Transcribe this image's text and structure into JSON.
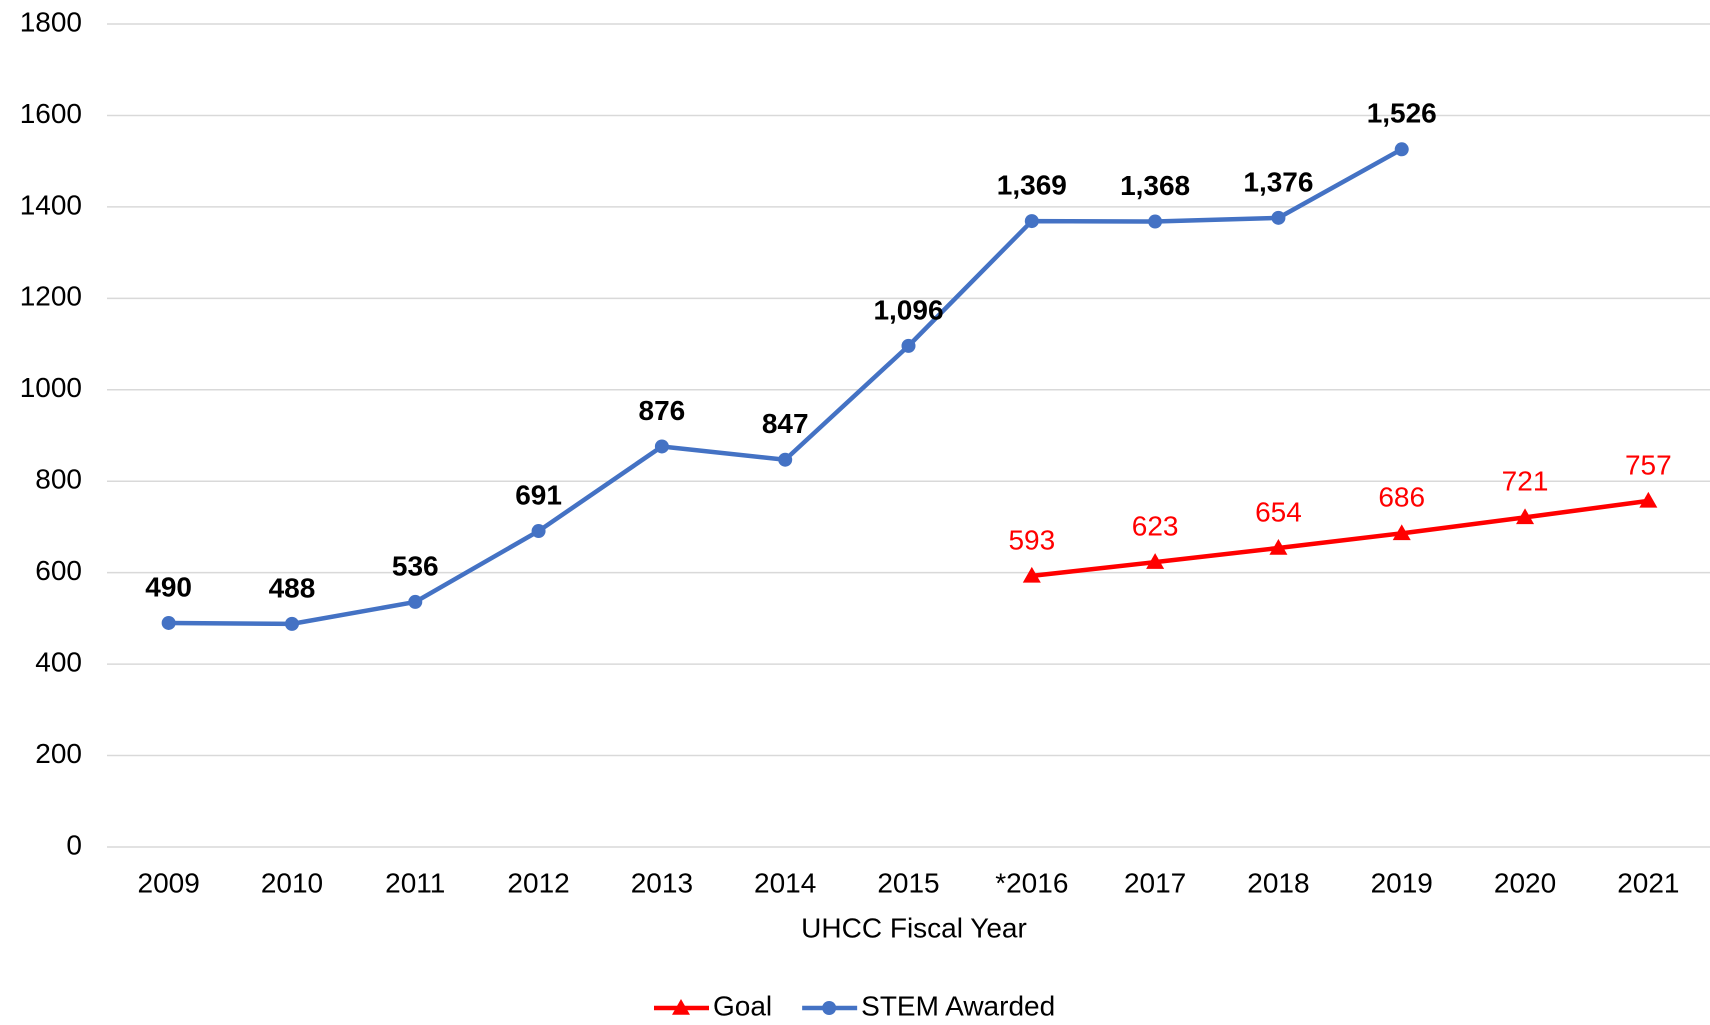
{
  "chart_data": {
    "type": "line",
    "xlabel": "UHCC Fiscal Year",
    "categories": [
      "2009",
      "2010",
      "2011",
      "2012",
      "2013",
      "2014",
      "2015",
      "*2016",
      "2017",
      "2018",
      "2019",
      "2020",
      "2021"
    ],
    "series": [
      {
        "name": "Goal",
        "color": "#ff0000",
        "marker": "triangle",
        "values": [
          null,
          null,
          null,
          null,
          null,
          null,
          null,
          593,
          623,
          654,
          686,
          721,
          757
        ]
      },
      {
        "name": "STEM Awarded",
        "color": "#4472c4",
        "marker": "circle",
        "values": [
          490,
          488,
          536,
          691,
          876,
          847,
          1096,
          1369,
          1368,
          1376,
          1526,
          null,
          null
        ],
        "value_labels": [
          "490",
          "488",
          "536",
          "691",
          "876",
          "847",
          "1,096",
          "1,369",
          "1,368",
          "1,376",
          "1,526",
          null,
          null
        ]
      }
    ],
    "ylim": [
      0,
      1800
    ],
    "yticks": [
      0,
      200,
      400,
      600,
      800,
      1000,
      1200,
      1400,
      1600,
      1800
    ],
    "grid": true,
    "legend": "bottom"
  }
}
